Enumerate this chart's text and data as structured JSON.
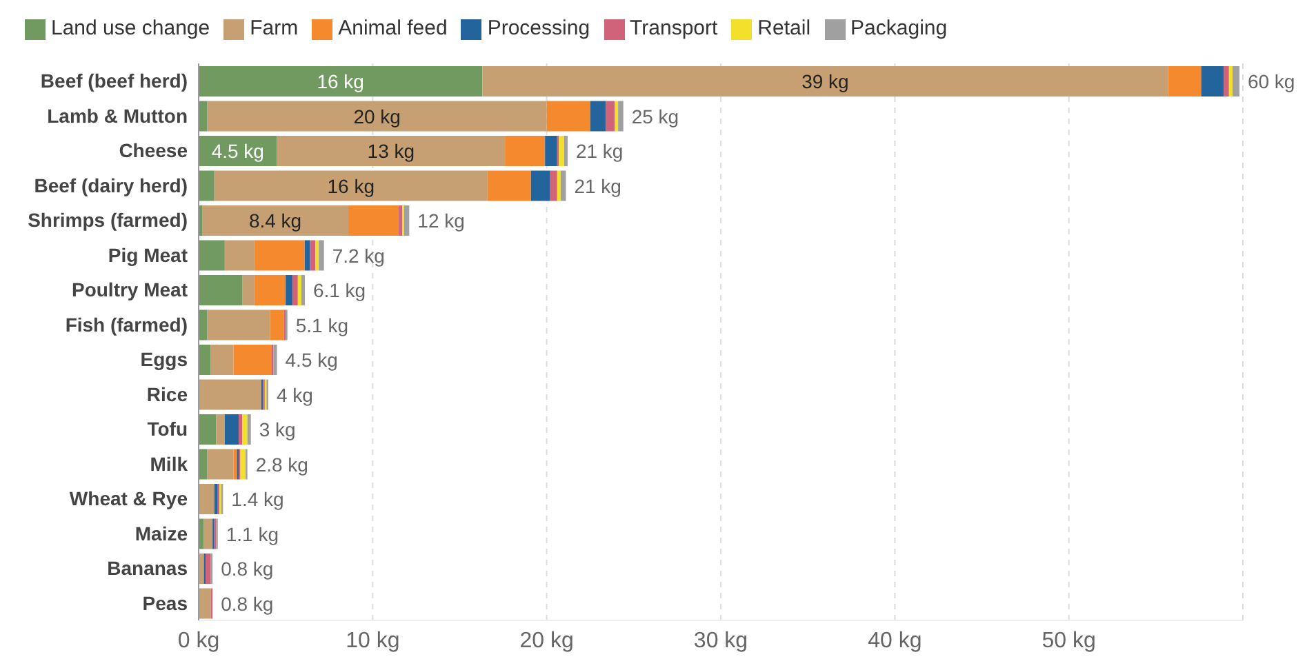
{
  "chart_data": {
    "type": "bar",
    "orientation": "horizontal",
    "stacked": true,
    "categories": [
      "Beef (beef herd)",
      "Lamb & Mutton",
      "Cheese",
      "Beef (dairy herd)",
      "Shrimps (farmed)",
      "Pig Meat",
      "Poultry Meat",
      "Fish (farmed)",
      "Eggs",
      "Rice",
      "Tofu",
      "Milk",
      "Wheat & Rye",
      "Maize",
      "Bananas",
      "Peas"
    ],
    "series": [
      {
        "name": "Land use change",
        "color": "#709a5f",
        "values": [
          16.3,
          0.5,
          4.5,
          0.9,
          0.2,
          1.5,
          2.5,
          0.5,
          0.7,
          0,
          1.0,
          0.5,
          0,
          0.3,
          0,
          0
        ],
        "value_labels": [
          "16 kg",
          null,
          "4.5 kg",
          null,
          null,
          null,
          null,
          null,
          null,
          null,
          null,
          null,
          null,
          null,
          null,
          null
        ]
      },
      {
        "name": "Farm",
        "color": "#c69f72",
        "values": [
          39.4,
          19.5,
          13.1,
          15.7,
          8.4,
          1.7,
          0.7,
          3.6,
          1.3,
          3.6,
          0.5,
          1.5,
          0.9,
          0.5,
          0.3,
          0.7
        ],
        "value_labels": [
          "39 kg",
          "20 kg",
          "13 kg",
          "16 kg",
          "8.4 kg",
          null,
          null,
          null,
          null,
          null,
          null,
          null,
          null,
          null,
          null,
          null
        ]
      },
      {
        "name": "Animal feed",
        "color": "#f5892d",
        "values": [
          1.9,
          2.5,
          2.3,
          2.5,
          2.9,
          2.9,
          1.8,
          0.8,
          2.2,
          0,
          0,
          0.2,
          0,
          0,
          0,
          0
        ]
      },
      {
        "name": "Processing",
        "color": "#24649c",
        "values": [
          1.3,
          0.9,
          0.7,
          1.1,
          0,
          0.3,
          0.4,
          0,
          0,
          0.1,
          0.8,
          0.1,
          0.2,
          0.1,
          0.1,
          0
        ]
      },
      {
        "name": "Transport",
        "color": "#d0637a",
        "values": [
          0.3,
          0.5,
          0.1,
          0.4,
          0.2,
          0.3,
          0.3,
          0.1,
          0.1,
          0.1,
          0.2,
          0.1,
          0.1,
          0.1,
          0.3,
          0.1
        ]
      },
      {
        "name": "Retail",
        "color": "#f3e02b",
        "values": [
          0.2,
          0.2,
          0.3,
          0.2,
          0.1,
          0.2,
          0.2,
          0,
          0,
          0.1,
          0.3,
          0.3,
          0.1,
          0,
          0,
          0
        ]
      },
      {
        "name": "Packaging",
        "color": "#a0a0a0",
        "values": [
          0.4,
          0.3,
          0.2,
          0.3,
          0.3,
          0.3,
          0.2,
          0.1,
          0.2,
          0.1,
          0.2,
          0.1,
          0.1,
          0.1,
          0.1,
          0
        ]
      }
    ],
    "totals": [
      "60 kg",
      "25 kg",
      "21 kg",
      "21 kg",
      "12 kg",
      "7.2 kg",
      "6.1 kg",
      "5.1 kg",
      "4.5 kg",
      "4 kg",
      "3 kg",
      "2.8 kg",
      "1.4 kg",
      "1.1 kg",
      "0.8 kg",
      "0.8 kg"
    ],
    "xlim": [
      0,
      60
    ],
    "xticks": [
      {
        "value": 0,
        "label": "0 kg"
      },
      {
        "value": 10,
        "label": "10 kg"
      },
      {
        "value": 20,
        "label": "20 kg"
      },
      {
        "value": 30,
        "label": "30 kg"
      },
      {
        "value": 40,
        "label": "40 kg"
      },
      {
        "value": 50,
        "label": "50 kg"
      }
    ],
    "grid": "x",
    "legend": "top left"
  }
}
